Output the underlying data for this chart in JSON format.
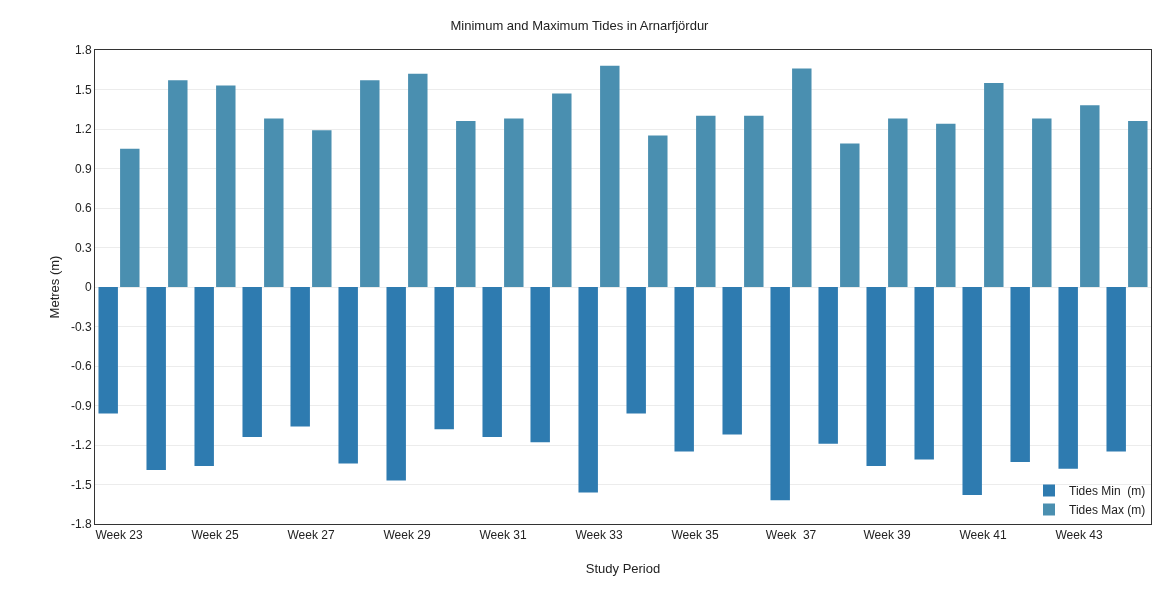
{
  "chart_data": {
    "type": "bar",
    "title": "Minimum and Maximum Tides in Arnarfjördur",
    "xlabel": "Study Period",
    "ylabel": "Metres (m)",
    "categories": [
      "Week 23",
      null,
      "Week 25",
      null,
      "Week 27",
      null,
      "Week 29",
      null,
      "Week 31",
      null,
      "Week 33",
      null,
      "Week 35",
      null,
      "Week  37",
      null,
      "Week 39",
      null,
      "Week 41",
      null,
      "Week 43",
      null
    ],
    "series": [
      {
        "name": "Tides Min  (m)",
        "color": "#2e7bb0",
        "values": [
          -0.96,
          -1.39,
          -1.36,
          -1.14,
          -1.06,
          -1.34,
          -1.47,
          -1.08,
          -1.14,
          -1.18,
          -1.56,
          -0.96,
          -1.25,
          -1.12,
          -1.62,
          -1.19,
          -1.36,
          -1.31,
          -1.58,
          -1.33,
          -1.38,
          -1.25
        ]
      },
      {
        "name": "Tides Max (m)",
        "color": "#4a8fb0",
        "values": [
          1.05,
          1.57,
          1.53,
          1.28,
          1.19,
          1.57,
          1.62,
          1.26,
          1.28,
          1.47,
          1.68,
          1.15,
          1.3,
          1.3,
          1.66,
          1.09,
          1.28,
          1.24,
          1.55,
          1.28,
          1.38,
          1.26
        ]
      }
    ],
    "ylim": [
      -1.8,
      1.8
    ],
    "yticks": [
      -1.8,
      -1.5,
      -1.2,
      -0.9,
      -0.6,
      -0.3,
      0,
      0.3,
      0.6,
      0.9,
      1.2,
      1.5,
      1.8
    ],
    "grid": "y",
    "legend": "bottom right"
  }
}
